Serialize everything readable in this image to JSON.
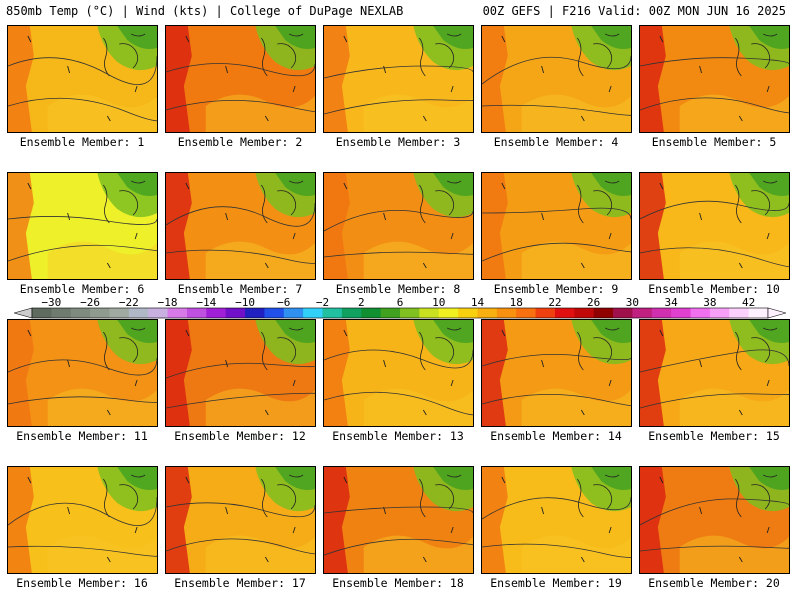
{
  "header": {
    "left": "850mb Temp (°C) | Wind (kts) | College of DuPage NEXLAB",
    "right": "00Z GEFS | F216 Valid: 00Z MON JUN 16 2025"
  },
  "colorbar": {
    "tick_labels": [
      "-30",
      "-26",
      "-22",
      "-18",
      "-14",
      "-10",
      "-6",
      "-2",
      "2",
      "6",
      "10",
      "14",
      "18",
      "22",
      "26",
      "30",
      "34",
      "38",
      "42"
    ],
    "min": -32,
    "max": 44,
    "step": 2,
    "colors": [
      "#5f6b5f",
      "#6f7b6f",
      "#7f8b7f",
      "#8f9b8f",
      "#a0aaa0",
      "#b0b8c8",
      "#c8b0e0",
      "#d77ae8",
      "#c050e0",
      "#a020d8",
      "#7010c8",
      "#2020c0",
      "#2050e8",
      "#3090f0",
      "#30d0f8",
      "#20c0a0",
      "#10a060",
      "#109030",
      "#40a020",
      "#80c020",
      "#c8e020",
      "#f0f020",
      "#f8d010",
      "#f8b010",
      "#f89010",
      "#f87010",
      "#f04010",
      "#e01010",
      "#c00808",
      "#900000",
      "#a0104a",
      "#c02080",
      "#d030b0",
      "#e040d0",
      "#f070f0",
      "#f8a0f8",
      "#fcd0fc",
      "#fff0ff"
    ]
  },
  "panels": [
    {
      "label": "Ensemble Member: 1",
      "tint": "#f6b818"
    },
    {
      "label": "Ensemble Member: 2",
      "tint": "#f07a10"
    },
    {
      "label": "Ensemble Member: 3",
      "tint": "#f8b81c"
    },
    {
      "label": "Ensemble Member: 4",
      "tint": "#f5a616"
    },
    {
      "label": "Ensemble Member: 5",
      "tint": "#f28a12"
    },
    {
      "label": "Ensemble Member: 6",
      "tint": "#eef02a"
    },
    {
      "label": "Ensemble Member: 7",
      "tint": "#f39014"
    },
    {
      "label": "Ensemble Member: 8",
      "tint": "#f38e14"
    },
    {
      "label": "Ensemble Member: 9",
      "tint": "#f49c14"
    },
    {
      "label": "Ensemble Member: 10",
      "tint": "#f8b81a"
    },
    {
      "label": "Ensemble Member: 11",
      "tint": "#f39214"
    },
    {
      "label": "Ensemble Member: 12",
      "tint": "#ee7812"
    },
    {
      "label": "Ensemble Member: 13",
      "tint": "#f6b418"
    },
    {
      "label": "Ensemble Member: 14",
      "tint": "#f49a14"
    },
    {
      "label": "Ensemble Member: 15",
      "tint": "#f6a816"
    },
    {
      "label": "Ensemble Member: 16",
      "tint": "#f8c01a"
    },
    {
      "label": "Ensemble Member: 17",
      "tint": "#f6ac16"
    },
    {
      "label": "Ensemble Member: 18",
      "tint": "#f08212"
    },
    {
      "label": "Ensemble Member: 19",
      "tint": "#f7bc1a"
    },
    {
      "label": "Ensemble Member: 20",
      "tint": "#ef7c12"
    }
  ]
}
